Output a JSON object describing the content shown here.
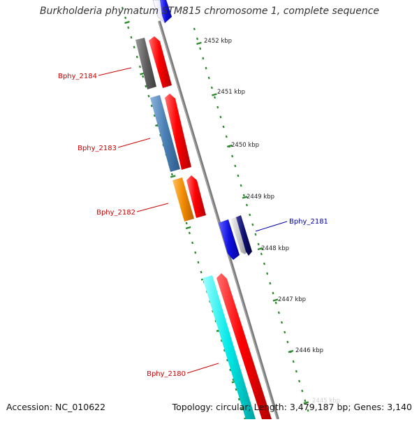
{
  "title": "Burkholderia phymatum STM815 chromosome 1, complete sequence",
  "footer": {
    "accession": "Accession: NC_010622",
    "summary": "Topology: circular; Length: 3,479,187 bp; Genes: 3,140"
  },
  "scale": {
    "ticks": [
      {
        "label": "2452 kbp"
      },
      {
        "label": "2451 kbp"
      },
      {
        "label": "2450 kbp"
      },
      {
        "label": "2449 kbp"
      },
      {
        "label": "2448 kbp"
      },
      {
        "label": "2447 kbp"
      },
      {
        "label": "2446 kbp"
      },
      {
        "label": "2445 kbp"
      }
    ]
  },
  "genes": [
    {
      "label": "Bphy_2184",
      "strand": "left",
      "color": "#606060"
    },
    {
      "label": "Bphy_2183",
      "strand": "left",
      "color": "#4a7fb5"
    },
    {
      "label": "Bphy_2182",
      "strand": "left",
      "color": "#f08a00"
    },
    {
      "label": "Bphy_2181",
      "strand": "right",
      "color": "#1010e0"
    },
    {
      "label": "Bphy_2180",
      "strand": "left",
      "color": "#00e0e0"
    }
  ],
  "colors": {
    "backbone": "#808080",
    "tick": "#2a8a2a",
    "cds": "#ff0000",
    "label_left": "#cc0000",
    "label_right": "#0000aa",
    "grey_gene": "#c8c8c8",
    "navy_gene": "#101070"
  }
}
